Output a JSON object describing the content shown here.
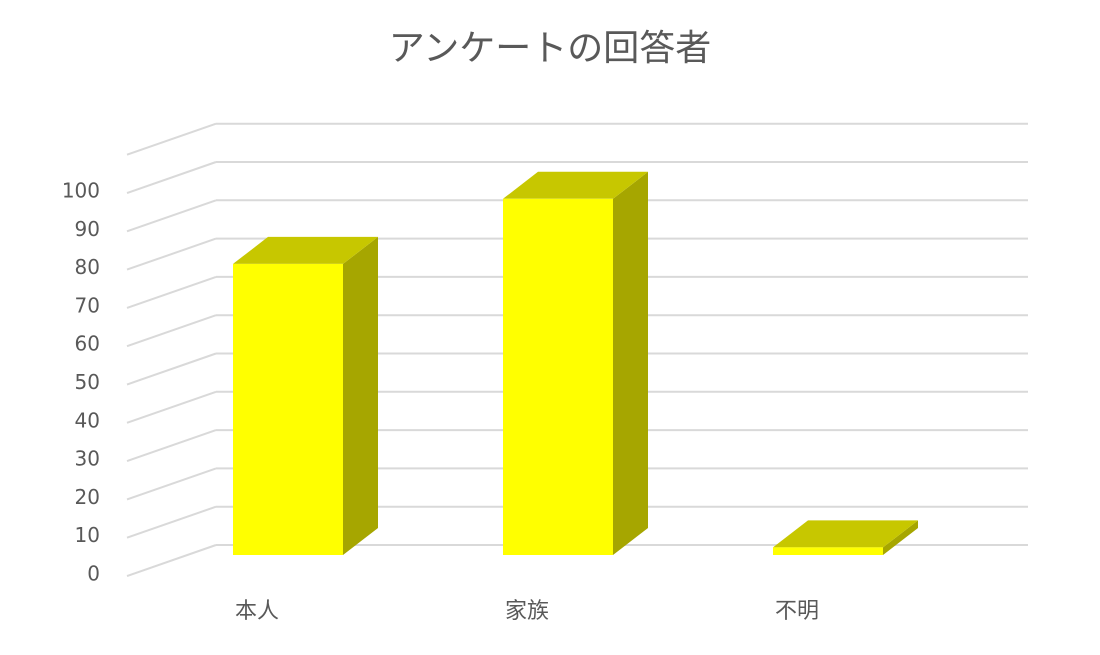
{
  "chart_data": {
    "type": "bar3d",
    "title": "アンケートの回答者",
    "categories": [
      "本人",
      "家族",
      "不明"
    ],
    "values": [
      76,
      93,
      2
    ],
    "color": "#ffff00",
    "ylim": [
      0,
      110
    ],
    "yticks": [
      0,
      10,
      20,
      30,
      40,
      50,
      60,
      70,
      80,
      90,
      100
    ],
    "grid": true
  }
}
